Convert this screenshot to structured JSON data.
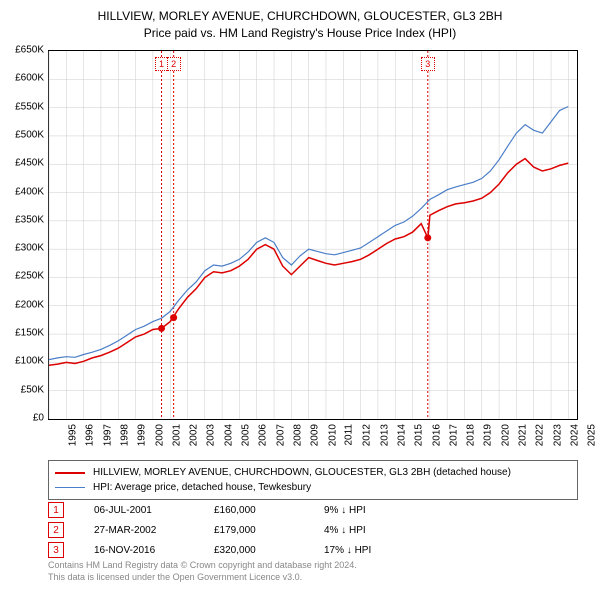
{
  "title_line1": "HILLVIEW, MORLEY AVENUE, CHURCHDOWN, GLOUCESTER, GL3 2BH",
  "title_line2": "Price paid vs. HM Land Registry's House Price Index (HPI)",
  "chart": {
    "type": "line",
    "xlim": [
      1995,
      2025.5
    ],
    "ylim": [
      0,
      650000
    ],
    "ytick_step": 50000,
    "yticks": [
      "£0",
      "£50K",
      "£100K",
      "£150K",
      "£200K",
      "£250K",
      "£300K",
      "£350K",
      "£400K",
      "£450K",
      "£500K",
      "£550K",
      "£600K",
      "£650K"
    ],
    "xticks": [
      "1995",
      "1996",
      "1997",
      "1998",
      "1999",
      "2000",
      "2001",
      "2002",
      "2003",
      "2004",
      "2005",
      "2006",
      "2007",
      "2008",
      "2009",
      "2010",
      "2011",
      "2012",
      "2013",
      "2014",
      "2015",
      "2016",
      "2017",
      "2018",
      "2019",
      "2020",
      "2021",
      "2022",
      "2023",
      "2024",
      "2025"
    ],
    "grid_color": "#cccccc",
    "background_color": "#ffffff",
    "series": [
      {
        "name": "red_series",
        "color": "#dd0000",
        "width": 1.5,
        "points": [
          [
            1995,
            95000
          ],
          [
            1995.5,
            97000
          ],
          [
            1996,
            100000
          ],
          [
            1996.5,
            98000
          ],
          [
            1997,
            102000
          ],
          [
            1997.5,
            108000
          ],
          [
            1998,
            112000
          ],
          [
            1998.5,
            118000
          ],
          [
            1999,
            125000
          ],
          [
            1999.5,
            135000
          ],
          [
            2000,
            145000
          ],
          [
            2000.5,
            150000
          ],
          [
            2001,
            158000
          ],
          [
            2001.5,
            160000
          ],
          [
            2002,
            172000
          ],
          [
            2002.5,
            195000
          ],
          [
            2003,
            215000
          ],
          [
            2003.5,
            230000
          ],
          [
            2004,
            250000
          ],
          [
            2004.5,
            260000
          ],
          [
            2005,
            258000
          ],
          [
            2005.5,
            262000
          ],
          [
            2006,
            270000
          ],
          [
            2006.5,
            282000
          ],
          [
            2007,
            300000
          ],
          [
            2007.5,
            308000
          ],
          [
            2008,
            300000
          ],
          [
            2008.5,
            270000
          ],
          [
            2009,
            255000
          ],
          [
            2009.5,
            270000
          ],
          [
            2010,
            285000
          ],
          [
            2010.5,
            280000
          ],
          [
            2011,
            275000
          ],
          [
            2011.5,
            272000
          ],
          [
            2012,
            275000
          ],
          [
            2012.5,
            278000
          ],
          [
            2013,
            282000
          ],
          [
            2013.5,
            290000
          ],
          [
            2014,
            300000
          ],
          [
            2014.5,
            310000
          ],
          [
            2015,
            318000
          ],
          [
            2015.5,
            322000
          ],
          [
            2016,
            330000
          ],
          [
            2016.5,
            345000
          ],
          [
            2016.88,
            320000
          ],
          [
            2017,
            360000
          ],
          [
            2017.5,
            368000
          ],
          [
            2018,
            375000
          ],
          [
            2018.5,
            380000
          ],
          [
            2019,
            382000
          ],
          [
            2019.5,
            385000
          ],
          [
            2020,
            390000
          ],
          [
            2020.5,
            400000
          ],
          [
            2021,
            415000
          ],
          [
            2021.5,
            435000
          ],
          [
            2022,
            450000
          ],
          [
            2022.5,
            460000
          ],
          [
            2023,
            445000
          ],
          [
            2023.5,
            438000
          ],
          [
            2024,
            442000
          ],
          [
            2024.5,
            448000
          ],
          [
            2025,
            452000
          ]
        ]
      },
      {
        "name": "blue_series",
        "color": "#4a7ec8",
        "width": 1.2,
        "points": [
          [
            1995,
            105000
          ],
          [
            1995.5,
            108000
          ],
          [
            1996,
            110000
          ],
          [
            1996.5,
            109000
          ],
          [
            1997,
            114000
          ],
          [
            1997.5,
            118000
          ],
          [
            1998,
            123000
          ],
          [
            1998.5,
            130000
          ],
          [
            1999,
            138000
          ],
          [
            1999.5,
            148000
          ],
          [
            2000,
            158000
          ],
          [
            2000.5,
            164000
          ],
          [
            2001,
            172000
          ],
          [
            2001.5,
            178000
          ],
          [
            2002,
            190000
          ],
          [
            2002.5,
            210000
          ],
          [
            2003,
            228000
          ],
          [
            2003.5,
            242000
          ],
          [
            2004,
            262000
          ],
          [
            2004.5,
            272000
          ],
          [
            2005,
            270000
          ],
          [
            2005.5,
            275000
          ],
          [
            2006,
            282000
          ],
          [
            2006.5,
            295000
          ],
          [
            2007,
            312000
          ],
          [
            2007.5,
            320000
          ],
          [
            2008,
            312000
          ],
          [
            2008.5,
            285000
          ],
          [
            2009,
            272000
          ],
          [
            2009.5,
            288000
          ],
          [
            2010,
            300000
          ],
          [
            2010.5,
            296000
          ],
          [
            2011,
            292000
          ],
          [
            2011.5,
            290000
          ],
          [
            2012,
            294000
          ],
          [
            2012.5,
            298000
          ],
          [
            2013,
            302000
          ],
          [
            2013.5,
            312000
          ],
          [
            2014,
            322000
          ],
          [
            2014.5,
            332000
          ],
          [
            2015,
            342000
          ],
          [
            2015.5,
            348000
          ],
          [
            2016,
            358000
          ],
          [
            2016.5,
            372000
          ],
          [
            2017,
            388000
          ],
          [
            2017.5,
            396000
          ],
          [
            2018,
            405000
          ],
          [
            2018.5,
            410000
          ],
          [
            2019,
            414000
          ],
          [
            2019.5,
            418000
          ],
          [
            2020,
            425000
          ],
          [
            2020.5,
            438000
          ],
          [
            2021,
            458000
          ],
          [
            2021.5,
            482000
          ],
          [
            2022,
            505000
          ],
          [
            2022.5,
            520000
          ],
          [
            2023,
            510000
          ],
          [
            2023.5,
            505000
          ],
          [
            2024,
            525000
          ],
          [
            2024.5,
            545000
          ],
          [
            2025,
            552000
          ]
        ]
      }
    ],
    "marker_positions": [
      {
        "num": "1",
        "x": 2001.5,
        "color": "#dd0000"
      },
      {
        "num": "2",
        "x": 2002.2,
        "color": "#dd0000"
      },
      {
        "num": "3",
        "x": 2016.88,
        "color": "#dd0000"
      }
    ],
    "sale_points": [
      {
        "x": 2001.5,
        "y": 160000
      },
      {
        "x": 2002.2,
        "y": 179000
      },
      {
        "x": 2016.88,
        "y": 320000
      }
    ]
  },
  "legend": {
    "items": [
      {
        "color": "#dd0000",
        "width": 2,
        "label": "HILLVIEW, MORLEY AVENUE, CHURCHDOWN, GLOUCESTER, GL3 2BH (detached house)"
      },
      {
        "color": "#4a7ec8",
        "width": 1,
        "label": "HPI: Average price, detached house, Tewkesbury"
      }
    ]
  },
  "markers": [
    {
      "num": "1",
      "date": "06-JUL-2001",
      "price": "£160,000",
      "pct": "9% ↓ HPI",
      "color": "#dd0000"
    },
    {
      "num": "2",
      "date": "27-MAR-2002",
      "price": "£179,000",
      "pct": "4% ↓ HPI",
      "color": "#dd0000"
    },
    {
      "num": "3",
      "date": "16-NOV-2016",
      "price": "£320,000",
      "pct": "17% ↓ HPI",
      "color": "#dd0000"
    }
  ],
  "footnote_line1": "Contains HM Land Registry data © Crown copyright and database right 2024.",
  "footnote_line2": "This data is licensed under the Open Government Licence v3.0."
}
